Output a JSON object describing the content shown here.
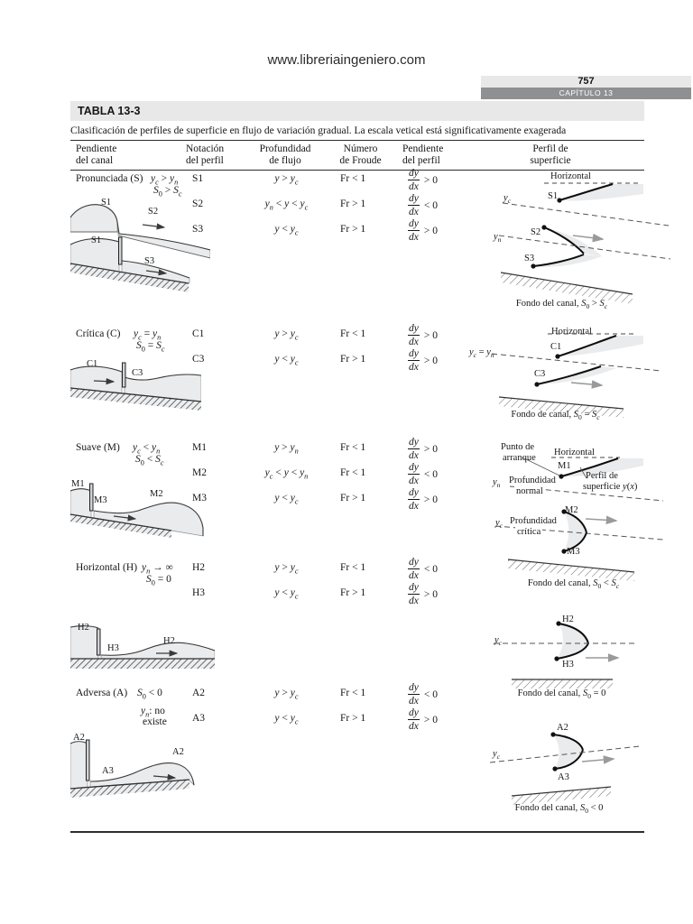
{
  "page": {
    "watermark": "www.libreriaingeniero.com",
    "page_number": "757",
    "chapter_label": "CAPÍTULO 13"
  },
  "table": {
    "title": "TABLA 13-3",
    "caption": "Clasificación de perfiles de superficie en flujo de variación gradual. La escala vetical está significativamente exagerada",
    "headers": [
      {
        "l1": "Pendiente",
        "l2": "del canal"
      },
      {
        "l1": "Notación",
        "l2": "del perfil"
      },
      {
        "l1": "Profundidad",
        "l2": "de flujo"
      },
      {
        "l1": "Número",
        "l2": "de Froude"
      },
      {
        "l1": "Pendiente",
        "l2": "del perfil"
      },
      {
        "l1": "Perfil de",
        "l2": "superficie"
      }
    ],
    "frac": {
      "num": "dy",
      "den": "dx"
    },
    "rows": [
      {
        "name": "Pronunciada (S)",
        "cond1": "y_c > y_n",
        "cond2": "S_0 > S_c",
        "profiles": [
          {
            "notation": "S1",
            "depth": "y > y_c",
            "froude": "Fr < 1",
            "slope": "> 0"
          },
          {
            "notation": "S2",
            "depth": "y_n < y < y_c",
            "froude": "Fr > 1",
            "slope": "< 0"
          },
          {
            "notation": "S3",
            "depth": "y < y_c",
            "froude": "Fr > 1",
            "slope": "> 0"
          }
        ],
        "left": {
          "a": "S1",
          "b": "S2",
          "c": "S1",
          "d": "S3"
        },
        "right": {
          "horizontal": "Horizontal",
          "p1": "S1",
          "p2": "S2",
          "p3": "S3",
          "yline1": "y_c",
          "yline2": "y_n",
          "caption": "Fondo del canal, S_0 > S_c"
        }
      },
      {
        "name": "Crítica (C)",
        "cond1": "y_c = y_n",
        "cond2": "S_0 = S_c",
        "profiles": [
          {
            "notation": "C1",
            "depth": "y > y_c",
            "froude": "Fr < 1",
            "slope": "> 0"
          },
          {
            "notation": "C3",
            "depth": "y < y_c",
            "froude": "Fr > 1",
            "slope": "> 0"
          }
        ],
        "left": {
          "a": "C1",
          "b": "C3"
        },
        "right": {
          "horizontal": "Horizontal",
          "p1": "C1",
          "p2": "C3",
          "yline1": "y_c = y_n",
          "caption": "Fondo de canal, S_0 = S_c"
        }
      },
      {
        "name": "Suave (M)",
        "cond1": "y_c < y_n",
        "cond2": "S_0 < S_c",
        "profiles": [
          {
            "notation": "M1",
            "depth": "y > y_n",
            "froude": "Fr < 1",
            "slope": "> 0"
          },
          {
            "notation": "M2",
            "depth": "y_c < y < y_n",
            "froude": "Fr < 1",
            "slope": "< 0"
          },
          {
            "notation": "M3",
            "depth": "y < y_c",
            "froude": "Fr > 1",
            "slope": "> 0"
          }
        ],
        "left": {
          "a": "M1",
          "b": "M3",
          "c": "M2"
        },
        "right": {
          "start1": "Punto de",
          "start2": "arranque",
          "horizontal": "Horizontal",
          "p1": "M1",
          "surf1": "Perfil de",
          "surf2": "superficie y(x)",
          "yline1": "y_n",
          "depth1a": "Profundidad",
          "depth1b": "normal",
          "p2": "M2",
          "yline2": "y_c",
          "depth2a": "Profundidad",
          "depth2b": "crítica",
          "p3": "M3",
          "caption": "Fondo del canal, S_0 < S_c"
        }
      },
      {
        "name": "Horizontal (H)",
        "cond1": "y_n → ∞",
        "cond2": "S_0 = 0",
        "profiles": [
          {
            "notation": "H2",
            "depth": "y > y_c",
            "froude": "Fr < 1",
            "slope": "< 0"
          },
          {
            "notation": "H3",
            "depth": "y < y_c",
            "froude": "Fr > 1",
            "slope": "> 0"
          }
        ],
        "left": {
          "a": "H2",
          "b": "H3",
          "c": "H2"
        },
        "right": {
          "p1": "H2",
          "p2": "H3",
          "yline1": "y_c",
          "caption": "Fondo del canal, S_0 = 0"
        }
      },
      {
        "name": "Adversa (A)",
        "cond1": "S_0 < 0",
        "cond2": "y_n: no",
        "cond3": "existe",
        "profiles": [
          {
            "notation": "A2",
            "depth": "y > y_c",
            "froude": "Fr < 1",
            "slope": "< 0"
          },
          {
            "notation": "A3",
            "depth": "y < y_c",
            "froude": "Fr > 1",
            "slope": "> 0"
          }
        ],
        "left": {
          "a": "A2",
          "b": "A3",
          "c": "A2"
        },
        "right": {
          "p1": "A2",
          "p2": "A3",
          "yline1": "y_c",
          "caption": "Fondo del canal, S_0 < 0"
        }
      }
    ]
  }
}
